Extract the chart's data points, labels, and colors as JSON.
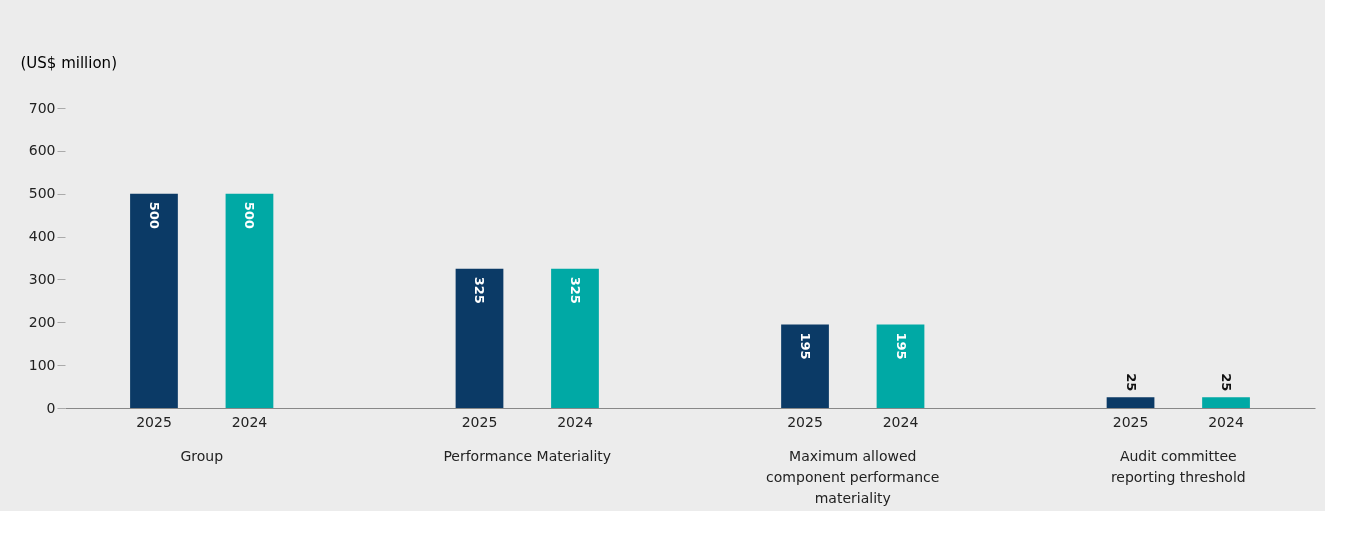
{
  "chart_data": {
    "type": "bar",
    "ylabel": "(US$ million)",
    "categories": [
      "Group",
      "Performance Materiality",
      "Maximum allowed component performance materiality",
      "Audit committee reporting threshold"
    ],
    "series": [
      {
        "name": "2025",
        "color": "#0b3a66",
        "values": [
          500,
          325,
          195,
          25
        ]
      },
      {
        "name": "2024",
        "color": "#00a9a5",
        "values": [
          500,
          325,
          195,
          25
        ]
      }
    ],
    "ylim": [
      0,
      700
    ],
    "yticks": [
      0,
      100,
      200,
      300,
      400,
      500,
      600,
      700
    ],
    "grid": false,
    "data_labels": true
  }
}
